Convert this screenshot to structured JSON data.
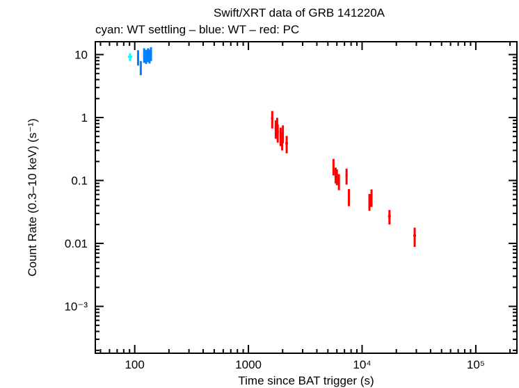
{
  "chart_data": {
    "type": "scatter",
    "title": "Swift/XRT data of GRB 141220A",
    "subtitle": "cyan: WT settling – blue: WT – red: PC",
    "xlabel": "Time since BAT trigger (s)",
    "ylabel": "Count Rate (0.3–10 keV) (s⁻¹)",
    "xscale": "log",
    "yscale": "log",
    "xlim": [
      45,
      230000
    ],
    "ylim": [
      0.00018,
      16
    ],
    "x_ticks": [
      {
        "value": 100,
        "label": "100"
      },
      {
        "value": 1000,
        "label": "1000"
      },
      {
        "value": 10000,
        "label": "10⁴"
      },
      {
        "value": 100000,
        "label": "10⁵"
      }
    ],
    "y_ticks": [
      {
        "value": 10,
        "label": "10"
      },
      {
        "value": 1,
        "label": "1"
      },
      {
        "value": 0.1,
        "label": "0.1"
      },
      {
        "value": 0.01,
        "label": "0.01"
      },
      {
        "value": 0.001,
        "label": "10⁻³"
      }
    ],
    "grid": false,
    "series": [
      {
        "name": "WT settling",
        "color": "#00ffff",
        "points": [
          {
            "x": 91,
            "y": 9.2,
            "xerr": [
              4,
              4
            ],
            "yerr": [
              1.3,
              1.3
            ]
          }
        ]
      },
      {
        "name": "WT",
        "color": "#0080ff",
        "points": [
          {
            "x": 107,
            "y": 9.2,
            "xerr": [
              2,
              2
            ],
            "yerr": [
              2.5,
              2.5
            ]
          },
          {
            "x": 113,
            "y": 6.3,
            "xerr": [
              2,
              2
            ],
            "yerr": [
              1.6,
              1.6
            ]
          },
          {
            "x": 121,
            "y": 10.0,
            "xerr": [
              2,
              2
            ],
            "yerr": [
              2.6,
              2.6
            ]
          },
          {
            "x": 126,
            "y": 9.5,
            "xerr": [
              2,
              2
            ],
            "yerr": [
              2.4,
              2.4
            ]
          },
          {
            "x": 131,
            "y": 10.1,
            "xerr": [
              2,
              2
            ],
            "yerr": [
              2.5,
              2.5
            ]
          },
          {
            "x": 135,
            "y": 9.6,
            "xerr": [
              2,
              2
            ],
            "yerr": [
              2.4,
              2.4
            ]
          },
          {
            "x": 139,
            "y": 10.5,
            "xerr": [
              2,
              2
            ],
            "yerr": [
              2.6,
              2.6
            ]
          }
        ]
      },
      {
        "name": "PC",
        "color": "#ff0000",
        "points": [
          {
            "x": 1620,
            "y": 0.97,
            "xerr": [
              40,
              40
            ],
            "yerr": [
              0.3,
              0.3
            ]
          },
          {
            "x": 1740,
            "y": 0.68,
            "xerr": [
              40,
              40
            ],
            "yerr": [
              0.22,
              0.22
            ]
          },
          {
            "x": 1790,
            "y": 0.75,
            "xerr": [
              40,
              40
            ],
            "yerr": [
              0.24,
              0.24
            ]
          },
          {
            "x": 1810,
            "y": 0.59,
            "xerr": [
              40,
              40
            ],
            "yerr": [
              0.19,
              0.19
            ]
          },
          {
            "x": 1920,
            "y": 0.52,
            "xerr": [
              40,
              40
            ],
            "yerr": [
              0.17,
              0.17
            ]
          },
          {
            "x": 1980,
            "y": 0.44,
            "xerr": [
              40,
              40
            ],
            "yerr": [
              0.14,
              0.14
            ]
          },
          {
            "x": 2010,
            "y": 0.57,
            "xerr": [
              40,
              40
            ],
            "yerr": [
              0.18,
              0.18
            ]
          },
          {
            "x": 2170,
            "y": 0.39,
            "xerr": [
              60,
              60
            ],
            "yerr": [
              0.12,
              0.12
            ]
          },
          {
            "x": 5600,
            "y": 0.17,
            "xerr": [
              100,
              100
            ],
            "yerr": [
              0.05,
              0.05
            ]
          },
          {
            "x": 5850,
            "y": 0.125,
            "xerr": [
              100,
              100
            ],
            "yerr": [
              0.035,
              0.035
            ]
          },
          {
            "x": 6000,
            "y": 0.117,
            "xerr": [
              100,
              100
            ],
            "yerr": [
              0.033,
              0.033
            ]
          },
          {
            "x": 6250,
            "y": 0.098,
            "xerr": [
              100,
              100
            ],
            "yerr": [
              0.028,
              0.028
            ]
          },
          {
            "x": 7300,
            "y": 0.12,
            "xerr": [
              150,
              150
            ],
            "yerr": [
              0.034,
              0.034
            ]
          },
          {
            "x": 7650,
            "y": 0.056,
            "xerr": [
              150,
              150
            ],
            "yerr": [
              0.017,
              0.017
            ]
          },
          {
            "x": 11600,
            "y": 0.047,
            "xerr": [
              250,
              250
            ],
            "yerr": [
              0.014,
              0.014
            ]
          },
          {
            "x": 12100,
            "y": 0.055,
            "xerr": [
              250,
              250
            ],
            "yerr": [
              0.017,
              0.017
            ]
          },
          {
            "x": 17400,
            "y": 0.027,
            "xerr": [
              500,
              500
            ],
            "yerr": [
              0.007,
              0.007
            ]
          },
          {
            "x": 29000,
            "y": 0.0133,
            "xerr": [
              800,
              800
            ],
            "yerr": [
              0.0045,
              0.0045
            ]
          }
        ]
      }
    ]
  }
}
